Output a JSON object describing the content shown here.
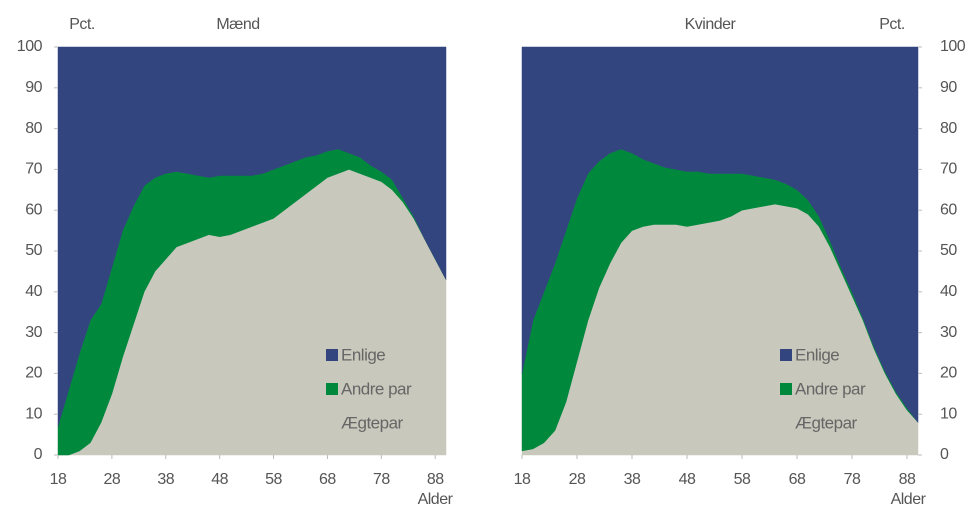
{
  "chart_data": [
    {
      "type": "area",
      "stacked": true,
      "title": "Mænd",
      "ylabel": "Pct.",
      "xlabel": "Alder",
      "yaxis_side": "left",
      "legend": "lower right",
      "x": [
        18,
        20,
        22,
        24,
        26,
        28,
        30,
        32,
        34,
        36,
        38,
        40,
        42,
        44,
        46,
        48,
        50,
        52,
        54,
        56,
        58,
        60,
        62,
        64,
        66,
        68,
        70,
        72,
        74,
        76,
        78,
        80,
        82,
        84,
        86,
        88,
        90
      ],
      "xlim": [
        18,
        90
      ],
      "xticks": [
        18,
        28,
        38,
        48,
        58,
        68,
        78,
        88
      ],
      "ylim": [
        0,
        100
      ],
      "yticks": [
        0,
        10,
        20,
        30,
        40,
        50,
        60,
        70,
        80,
        90,
        100
      ],
      "series": [
        {
          "name": "Ægtepar",
          "color": "#c8c8bc",
          "legend_style": "hollow",
          "values": [
            0,
            0,
            1,
            3,
            8,
            15,
            24,
            32,
            40,
            45,
            48,
            51,
            52,
            53,
            54,
            53.5,
            54,
            55,
            56,
            57,
            58,
            60,
            62,
            64,
            66,
            68,
            69,
            70,
            69,
            68,
            67,
            65,
            62,
            58,
            53,
            48,
            43
          ]
        },
        {
          "name": "Andre par",
          "color": "#00883c",
          "values": [
            7,
            16,
            24,
            30,
            29,
            31,
            31,
            29,
            26,
            23,
            21,
            18.5,
            17,
            15.5,
            14,
            15,
            14.5,
            13.5,
            12.5,
            12,
            12,
            11,
            10,
            9,
            7.5,
            6.5,
            6,
            4,
            4,
            3,
            2.5,
            2.5,
            1,
            0.5,
            0,
            0,
            0
          ]
        },
        {
          "name": "Enlige",
          "color": "#33457f",
          "values": [
            93,
            84,
            75,
            67,
            63,
            54,
            45,
            39,
            34,
            32,
            31,
            30.5,
            31,
            31.5,
            32,
            31.5,
            31.5,
            31.5,
            31.5,
            31,
            30,
            29,
            28,
            27,
            26.5,
            25.5,
            25,
            26,
            27,
            29,
            30.5,
            32.5,
            37,
            41.5,
            47,
            52,
            57
          ]
        }
      ]
    },
    {
      "type": "area",
      "stacked": true,
      "title": "Kvinder",
      "ylabel": "Pct.",
      "xlabel": "Alder",
      "yaxis_side": "right",
      "legend": "lower right",
      "x": [
        18,
        20,
        22,
        24,
        26,
        28,
        30,
        32,
        34,
        36,
        38,
        40,
        42,
        44,
        46,
        48,
        50,
        52,
        54,
        56,
        58,
        60,
        62,
        64,
        66,
        68,
        70,
        72,
        74,
        76,
        78,
        80,
        82,
        84,
        86,
        88,
        90
      ],
      "xlim": [
        18,
        90
      ],
      "xticks": [
        18,
        28,
        38,
        48,
        58,
        68,
        78,
        88
      ],
      "ylim": [
        0,
        100
      ],
      "yticks": [
        0,
        10,
        20,
        30,
        40,
        50,
        60,
        70,
        80,
        90,
        100
      ],
      "series": [
        {
          "name": "Ægtepar",
          "color": "#c8c8bc",
          "legend_style": "hollow",
          "values": [
            1,
            1.5,
            3,
            6,
            13,
            23,
            33,
            41,
            47,
            52,
            55,
            56,
            56.5,
            56.5,
            56.5,
            56,
            56.5,
            57,
            57.5,
            58.5,
            60,
            60.5,
            61,
            61.5,
            61,
            60.5,
            59,
            56,
            51,
            45,
            39,
            33,
            26,
            20,
            15,
            11,
            8
          ]
        },
        {
          "name": "Andre par",
          "color": "#00883c",
          "values": [
            19,
            31.5,
            37,
            41,
            42,
            40,
            36,
            31,
            27,
            23,
            19,
            16.5,
            15,
            14,
            13.5,
            13.5,
            13,
            12,
            11.5,
            10.5,
            9,
            8,
            7,
            6,
            5.5,
            4.5,
            3.5,
            2.5,
            1.5,
            1,
            1,
            0.5,
            0.5,
            0.5,
            0.5,
            0.5,
            0
          ]
        },
        {
          "name": "Enlige",
          "color": "#33457f",
          "values": [
            80,
            67,
            60,
            53,
            45,
            37,
            31,
            28,
            26,
            25,
            26,
            27.5,
            28.5,
            29.5,
            30,
            30.5,
            30.5,
            31,
            31,
            31,
            31,
            31.5,
            32,
            32.5,
            33.5,
            35,
            37.5,
            41.5,
            47.5,
            54,
            60,
            66.5,
            73.5,
            79.5,
            84.5,
            88.5,
            92
          ]
        }
      ]
    }
  ]
}
